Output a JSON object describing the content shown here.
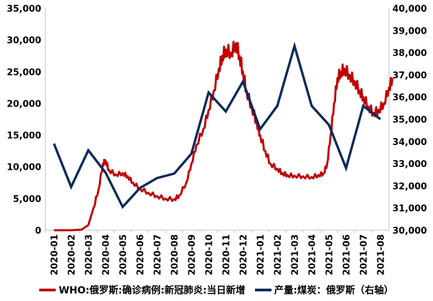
{
  "chart_data": {
    "type": "line",
    "title": "",
    "x_categories": [
      "2020-01",
      "2020-02",
      "2020-03",
      "2020-04",
      "2020-05",
      "2020-06",
      "2020-07",
      "2020-08",
      "2020-09",
      "2020-10",
      "2020-11",
      "2020-12",
      "2021-01",
      "2021-02",
      "2021-03",
      "2021-04",
      "2021-05",
      "2021-06",
      "2021-07",
      "2021-08"
    ],
    "left_axis": {
      "min": 0,
      "max": 35000,
      "ticks": [
        "0",
        "5,000",
        "10,000",
        "15,000",
        "20,000",
        "25,000",
        "30,000",
        "35,000"
      ]
    },
    "right_axis": {
      "min": 30000,
      "max": 40000,
      "ticks": [
        "30,000",
        "31,000",
        "32,000",
        "33,000",
        "34,000",
        "35,000",
        "36,000",
        "37,000",
        "38,000",
        "39,000",
        "40,000"
      ]
    },
    "legend_position": "bottom",
    "grid": false,
    "series": [
      {
        "name": "WHO:俄罗斯:确诊病例:新冠肺炎:当日新增",
        "axis": "left",
        "color": "#c00000",
        "points": [
          [
            0.0,
            0
          ],
          [
            1.0,
            0
          ],
          [
            1.6,
            100
          ],
          [
            2.0,
            800
          ],
          [
            2.3,
            3500
          ],
          [
            2.6,
            6500
          ],
          [
            2.85,
            10500
          ],
          [
            3.0,
            11000
          ],
          [
            3.2,
            9500
          ],
          [
            3.6,
            8800
          ],
          [
            4.0,
            9000
          ],
          [
            4.3,
            8500
          ],
          [
            4.6,
            7500
          ],
          [
            5.0,
            6600
          ],
          [
            5.5,
            5900
          ],
          [
            6.0,
            5400
          ],
          [
            6.5,
            5000
          ],
          [
            7.0,
            4900
          ],
          [
            7.3,
            5500
          ],
          [
            7.7,
            7500
          ],
          [
            8.0,
            10500
          ],
          [
            8.3,
            13500
          ],
          [
            8.7,
            16000
          ],
          [
            9.0,
            19000
          ],
          [
            9.3,
            22000
          ],
          [
            9.6,
            25500
          ],
          [
            9.8,
            27500
          ],
          [
            10.0,
            28500
          ],
          [
            10.3,
            28000
          ],
          [
            10.6,
            29500
          ],
          [
            10.8,
            27500
          ],
          [
            11.0,
            25000
          ],
          [
            11.2,
            22000
          ],
          [
            11.5,
            19500
          ],
          [
            11.8,
            17000
          ],
          [
            12.0,
            15000
          ],
          [
            12.3,
            12500
          ],
          [
            12.6,
            10500
          ],
          [
            13.0,
            9700
          ],
          [
            13.3,
            9000
          ],
          [
            13.6,
            8700
          ],
          [
            14.0,
            8600
          ],
          [
            14.5,
            8500
          ],
          [
            15.0,
            8400
          ],
          [
            15.4,
            8700
          ],
          [
            15.7,
            9000
          ],
          [
            15.9,
            10500
          ],
          [
            16.1,
            15000
          ],
          [
            16.3,
            20000
          ],
          [
            16.5,
            24000
          ],
          [
            16.7,
            25000
          ],
          [
            16.9,
            25500
          ],
          [
            17.2,
            24500
          ],
          [
            17.5,
            23500
          ],
          [
            17.8,
            22000
          ],
          [
            18.0,
            21000
          ],
          [
            18.3,
            19500
          ],
          [
            18.6,
            18500
          ],
          [
            18.9,
            19000
          ],
          [
            19.2,
            20000
          ],
          [
            19.5,
            22500
          ],
          [
            19.7,
            24000
          ]
        ]
      },
      {
        "name": "产量:煤炭：俄罗斯（右轴）",
        "axis": "right",
        "color": "#0d2a5a",
        "points": [
          [
            0,
            33900
          ],
          [
            1,
            31950
          ],
          [
            2,
            33600
          ],
          [
            3,
            32600
          ],
          [
            4,
            31050
          ],
          [
            5,
            31900
          ],
          [
            6,
            32350
          ],
          [
            7,
            32550
          ],
          [
            8,
            33450
          ],
          [
            9,
            36200
          ],
          [
            10,
            35350
          ],
          [
            11,
            36700
          ],
          [
            12,
            34550
          ],
          [
            13,
            35600
          ],
          [
            14,
            38300
          ],
          [
            15,
            35600
          ],
          [
            16,
            34750
          ],
          [
            17,
            32800
          ],
          [
            18,
            35600
          ],
          [
            19,
            35000
          ]
        ]
      }
    ]
  },
  "legend": [
    {
      "label": "WHO:俄罗斯:确诊病例:新冠肺炎:当日新增",
      "color": "#c00000"
    },
    {
      "label": "产量:煤炭：俄罗斯（右轴）",
      "color": "#0d2a5a"
    }
  ]
}
